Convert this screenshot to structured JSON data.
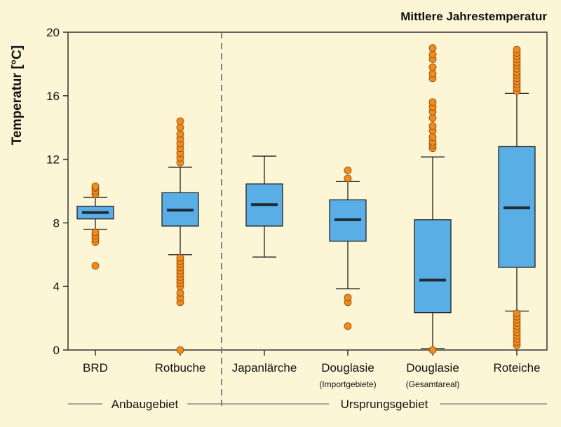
{
  "chart_data": {
    "type": "box",
    "title": "Mittlere Jahrestemperatur",
    "ylabel": "Temperatur [°C]",
    "xlabel": "",
    "ylim": [
      0,
      20
    ],
    "yticks": [
      0,
      4,
      8,
      12,
      16,
      20
    ],
    "grid": false,
    "colors": {
      "box": "#5aaee6",
      "outlier": "#f28a1e",
      "median": "#1f2a33",
      "background": "#fdf6d6"
    },
    "categories": [
      {
        "name": "BRD",
        "sub": "",
        "whisker_low": 7.6,
        "q1": 8.25,
        "median": 8.65,
        "q3": 9.05,
        "whisker_high": 9.6,
        "outliers": [
          5.3,
          6.8,
          7.0,
          7.2,
          7.4,
          9.8,
          10.0,
          10.2,
          10.3
        ]
      },
      {
        "name": "Rotbuche",
        "sub": "",
        "whisker_low": 6.0,
        "q1": 7.8,
        "median": 8.8,
        "q3": 9.9,
        "whisker_high": 11.5,
        "outliers": [
          0.0,
          3.0,
          3.3,
          3.6,
          4.0,
          4.2,
          4.4,
          4.6,
          4.8,
          5.0,
          5.2,
          5.4,
          5.6,
          5.8,
          11.8,
          12.1,
          12.4,
          12.7,
          13.0,
          13.3,
          13.6,
          14.0,
          14.4
        ]
      },
      {
        "name": "Japanlärche",
        "sub": "",
        "whisker_low": 5.85,
        "q1": 7.8,
        "median": 9.15,
        "q3": 10.45,
        "whisker_high": 12.2,
        "outliers": []
      },
      {
        "name": "Douglasie",
        "sub": "(Importgebiete)",
        "whisker_low": 3.85,
        "q1": 6.85,
        "median": 8.2,
        "q3": 9.45,
        "whisker_high": 10.6,
        "outliers": [
          1.5,
          3.0,
          3.3,
          10.8,
          11.3
        ]
      },
      {
        "name": "Douglasie",
        "sub": "(Gesamtareal)",
        "whisker_low": 0.1,
        "q1": 2.35,
        "median": 4.4,
        "q3": 8.2,
        "whisker_high": 12.15,
        "outliers": [
          0.0,
          12.7,
          12.9,
          13.1,
          13.4,
          13.8,
          14.1,
          14.6,
          15.0,
          15.3,
          15.6,
          17.1,
          17.4,
          17.8,
          18.3,
          18.6,
          19.0
        ]
      },
      {
        "name": "Roteiche",
        "sub": "",
        "whisker_low": 2.45,
        "q1": 5.2,
        "median": 8.95,
        "q3": 12.8,
        "whisker_high": 16.15,
        "outliers": [
          0.3,
          0.5,
          0.7,
          0.9,
          1.1,
          1.3,
          1.5,
          1.7,
          1.9,
          2.1,
          2.3,
          16.3,
          16.5,
          16.7,
          16.9,
          17.1,
          17.3,
          17.5,
          17.7,
          17.9,
          18.1,
          18.3,
          18.5,
          18.7,
          18.9
        ]
      }
    ],
    "groups": [
      {
        "label": "Anbaugebiet",
        "categories": [
          0,
          1
        ]
      },
      {
        "label": "Ursprungsgebiet",
        "categories": [
          2,
          3,
          4,
          5
        ]
      }
    ]
  }
}
